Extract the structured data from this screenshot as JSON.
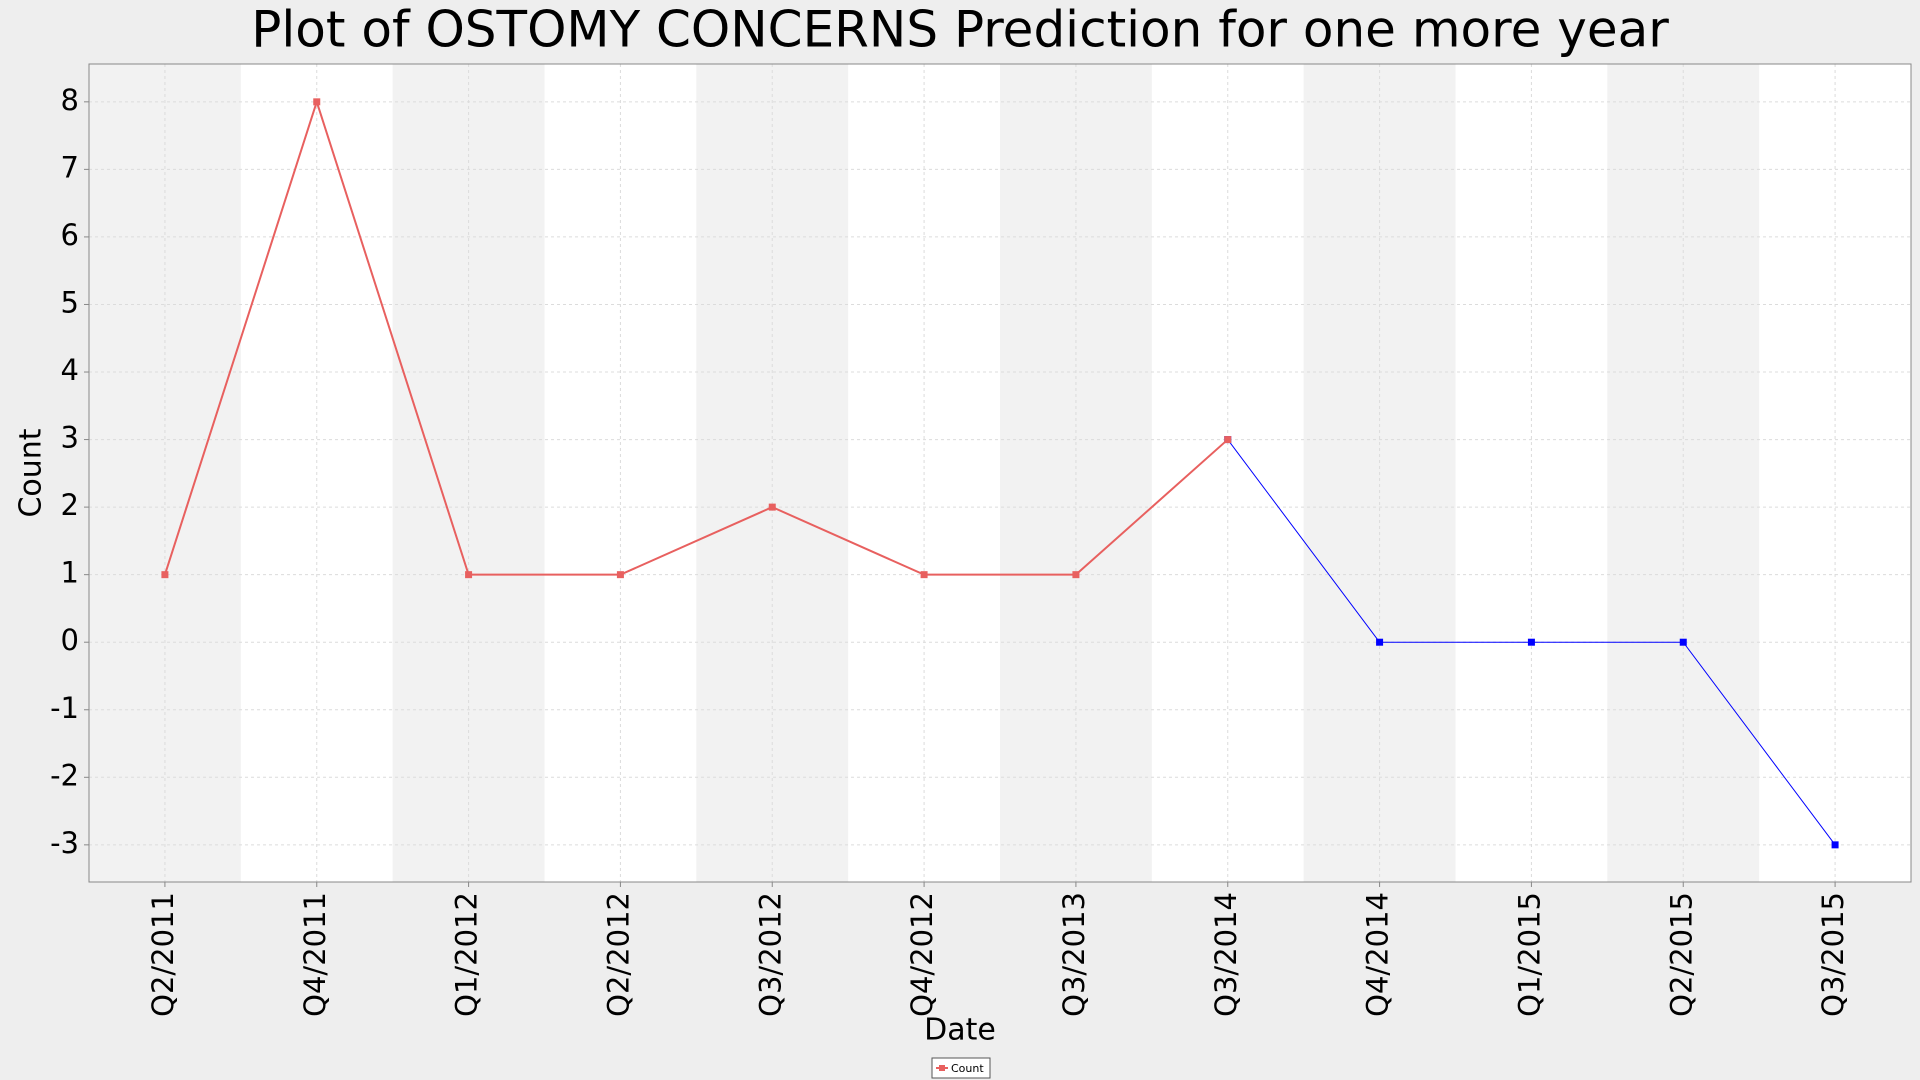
{
  "chart_data": {
    "type": "line",
    "title": "Plot of OSTOMY CONCERNS Prediction for one more year",
    "x_label": "Date",
    "y_label": "Count",
    "categories": [
      "Q2/2011",
      "Q4/2011",
      "Q1/2012",
      "Q2/2012",
      "Q3/2012",
      "Q4/2012",
      "Q3/2013",
      "Q3/2014",
      "Q4/2014",
      "Q1/2015",
      "Q2/2015",
      "Q3/2015"
    ],
    "series": [
      {
        "name": "Count",
        "color": "#e8605f",
        "values": [
          1,
          8,
          1,
          1,
          2,
          1,
          1,
          3,
          null,
          null,
          null,
          null
        ]
      },
      {
        "color": "#0000ff",
        "values": [
          null,
          null,
          null,
          null,
          null,
          null,
          null,
          3,
          0,
          0,
          0,
          -3
        ]
      }
    ],
    "ylim": [
      -3.55,
      8.56
    ],
    "yticks": [
      -3,
      -2,
      -1,
      0,
      1,
      2,
      3,
      4,
      5,
      6,
      7,
      8
    ],
    "grid": true,
    "legend": "bottom"
  }
}
